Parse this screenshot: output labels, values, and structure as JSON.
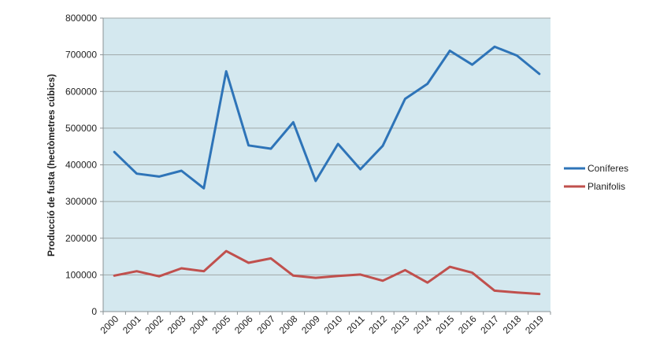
{
  "chart_data": {
    "type": "line",
    "title": "",
    "xlabel": "",
    "ylabel": "Producció de fusta (hectòmetres cúbics)",
    "categories": [
      "2000",
      "2001",
      "2002",
      "2003",
      "2004",
      "2005",
      "2006",
      "2007",
      "2008",
      "2009",
      "2010",
      "2011",
      "2012",
      "2013",
      "2014",
      "2015",
      "2016",
      "2017",
      "2018",
      "2019"
    ],
    "series": [
      {
        "name": "Coníferes",
        "color": "#2E74B8",
        "values": [
          435000,
          376000,
          368000,
          384000,
          336000,
          655000,
          453000,
          444000,
          516000,
          356000,
          457000,
          388000,
          452000,
          580000,
          621000,
          711000,
          673000,
          722000,
          698000,
          648000
        ]
      },
      {
        "name": "Planifolis",
        "color": "#C0504D",
        "values": [
          98000,
          110000,
          96000,
          118000,
          110000,
          165000,
          133000,
          145000,
          98000,
          92000,
          97000,
          101000,
          84000,
          113000,
          79000,
          122000,
          106000,
          57000,
          52000,
          48000
        ]
      }
    ],
    "ylim": [
      0,
      800000
    ],
    "y_tick_step": 100000,
    "y_tick_labels": [
      "0",
      "100000",
      "200000",
      "300000",
      "400000",
      "500000",
      "600000",
      "700000",
      "800000"
    ],
    "grid": "horizontal",
    "legend_position": "right",
    "plot_bg_color": "#D4E8EF",
    "grid_color": "#9FA8A8",
    "axis_color": "#8A9294",
    "text_color": "#1f1f1f"
  }
}
